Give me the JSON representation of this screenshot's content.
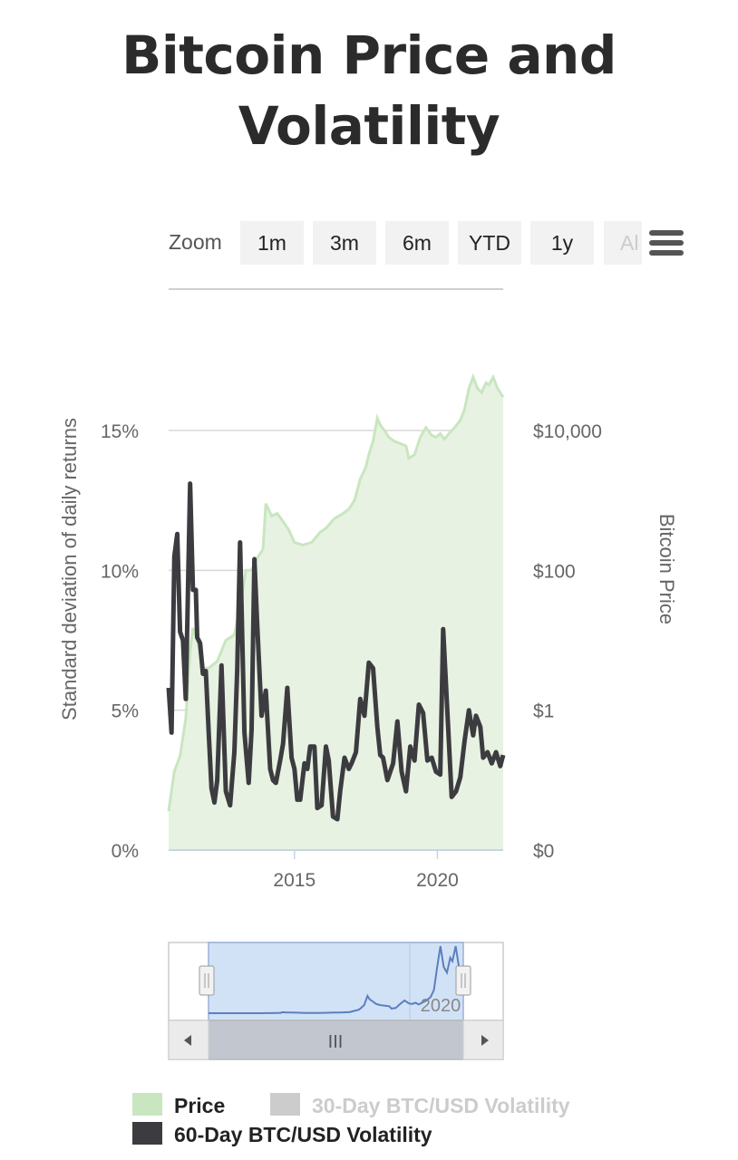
{
  "title": {
    "line1": "Bitcoin Price and",
    "line2": "Volatility"
  },
  "toolbar": {
    "zoom_label": "Zoom",
    "buttons": [
      "1m",
      "3m",
      "6m",
      "YTD",
      "1y",
      "Al"
    ]
  },
  "navigator": {
    "tick_label": "2020",
    "scroll_grip": "III"
  },
  "legend": [
    {
      "label": "Price",
      "color": "#c8e6c0",
      "text_color": "#222222"
    },
    {
      "label": "30-Day BTC/USD Volatility",
      "color": "#cccccc",
      "text_color": "#cccccc"
    },
    {
      "label": "60-Day BTC/USD Volatility",
      "color": "#3c3c40",
      "text_color": "#222222"
    }
  ],
  "chart_data": {
    "type": "line",
    "title": "Bitcoin Price and Volatility",
    "ylabel": "Standard deviation of daily returns",
    "y2label": "Bitcoin Price",
    "xlim": [
      2010.6,
      2022.3
    ],
    "ylim": [
      0,
      15
    ],
    "y_ticks": [
      "0%",
      "5%",
      "10%",
      "15%"
    ],
    "y2_ticks": [
      "$0",
      "$1",
      "$100",
      "$10,000"
    ],
    "x_ticks": [
      "2015",
      "2020"
    ],
    "grid": true,
    "legend_position": "bottom",
    "series": [
      {
        "name": "60-Day BTC/USD Volatility",
        "axis": "left",
        "color": "#3c3c40",
        "x": [
          2010.6,
          2010.7,
          2010.8,
          2010.9,
          2011.0,
          2011.1,
          2011.2,
          2011.35,
          2011.45,
          2011.55,
          2011.6,
          2011.7,
          2011.8,
          2011.9,
          2012.0,
          2012.1,
          2012.2,
          2012.3,
          2012.45,
          2012.6,
          2012.75,
          2012.9,
          2013.0,
          2013.1,
          2013.25,
          2013.4,
          2013.5,
          2013.6,
          2013.7,
          2013.85,
          2014.0,
          2014.15,
          2014.25,
          2014.35,
          2014.5,
          2014.6,
          2014.75,
          2014.9,
          2015.0,
          2015.1,
          2015.2,
          2015.35,
          2015.45,
          2015.55,
          2015.7,
          2015.8,
          2015.95,
          2016.1,
          2016.2,
          2016.35,
          2016.5,
          2016.6,
          2016.75,
          2016.9,
          2017.0,
          2017.15,
          2017.3,
          2017.45,
          2017.6,
          2017.75,
          2017.9,
          2018.0,
          2018.1,
          2018.25,
          2018.45,
          2018.6,
          2018.75,
          2018.9,
          2019.05,
          2019.2,
          2019.35,
          2019.5,
          2019.65,
          2019.8,
          2019.95,
          2020.1,
          2020.2,
          2020.35,
          2020.5,
          2020.65,
          2020.8,
          2020.95,
          2021.1,
          2021.25,
          2021.35,
          2021.5,
          2021.6,
          2021.75,
          2021.9,
          2022.05,
          2022.2,
          2022.3
        ],
        "y": [
          5.8,
          4.2,
          10.5,
          11.3,
          7.8,
          7.5,
          5.4,
          13.1,
          9.3,
          9.3,
          7.6,
          7.4,
          6.3,
          6.4,
          4.2,
          2.2,
          1.7,
          2.5,
          6.6,
          2.1,
          1.6,
          3.5,
          6.5,
          11.0,
          4.2,
          2.4,
          4.3,
          10.4,
          8.0,
          4.8,
          5.7,
          2.9,
          2.5,
          2.4,
          3.2,
          3.8,
          5.8,
          3.3,
          2.9,
          1.8,
          1.8,
          3.1,
          2.9,
          3.7,
          3.7,
          1.5,
          1.6,
          3.7,
          3.2,
          1.2,
          1.1,
          2.1,
          3.3,
          2.9,
          3.1,
          3.5,
          5.4,
          4.8,
          6.7,
          6.5,
          4.4,
          3.4,
          3.3,
          2.5,
          3.1,
          4.6,
          2.8,
          2.1,
          3.7,
          3.2,
          5.2,
          4.9,
          3.2,
          3.3,
          2.8,
          2.7,
          7.9,
          4.9,
          1.9,
          2.1,
          2.6,
          3.9,
          5.0,
          4.1,
          4.8,
          4.4,
          3.3,
          3.5,
          3.1,
          3.5,
          3.0,
          3.4
        ]
      },
      {
        "name": "Price",
        "axis": "right",
        "color": "#c8e6c0",
        "x": [
          2010.6,
          2010.8,
          2011.0,
          2011.2,
          2011.35,
          2011.45,
          2011.6,
          2011.8,
          2012.0,
          2012.3,
          2012.6,
          2012.9,
          2013.1,
          2013.3,
          2013.5,
          2013.7,
          2013.9,
          2014.0,
          2014.2,
          2014.4,
          2014.6,
          2014.8,
          2015.0,
          2015.3,
          2015.6,
          2015.9,
          2016.1,
          2016.4,
          2016.7,
          2016.9,
          2017.1,
          2017.3,
          2017.5,
          2017.6,
          2017.75,
          2017.9,
          2018.0,
          2018.15,
          2018.3,
          2018.5,
          2018.7,
          2018.9,
          2019.0,
          2019.2,
          2019.4,
          2019.6,
          2019.8,
          2019.95,
          2020.1,
          2020.25,
          2020.4,
          2020.6,
          2020.8,
          2020.95,
          2021.1,
          2021.25,
          2021.4,
          2021.55,
          2021.7,
          2021.8,
          2021.95,
          2022.1,
          2022.3
        ],
        "y": [
          0.07,
          0.2,
          0.3,
          0.8,
          7,
          15,
          10,
          4,
          4,
          5,
          10,
          12,
          30,
          100,
          100,
          150,
          200,
          900,
          600,
          650,
          500,
          380,
          250,
          230,
          250,
          350,
          400,
          550,
          650,
          750,
          1000,
          2000,
          3000,
          4500,
          7000,
          15000,
          12000,
          10000,
          8000,
          7000,
          6500,
          6000,
          4000,
          4500,
          8000,
          11000,
          8500,
          8000,
          9000,
          7500,
          9000,
          11000,
          14000,
          20000,
          40000,
          58000,
          40000,
          35000,
          48000,
          45000,
          58000,
          40000,
          30000
        ]
      }
    ]
  }
}
